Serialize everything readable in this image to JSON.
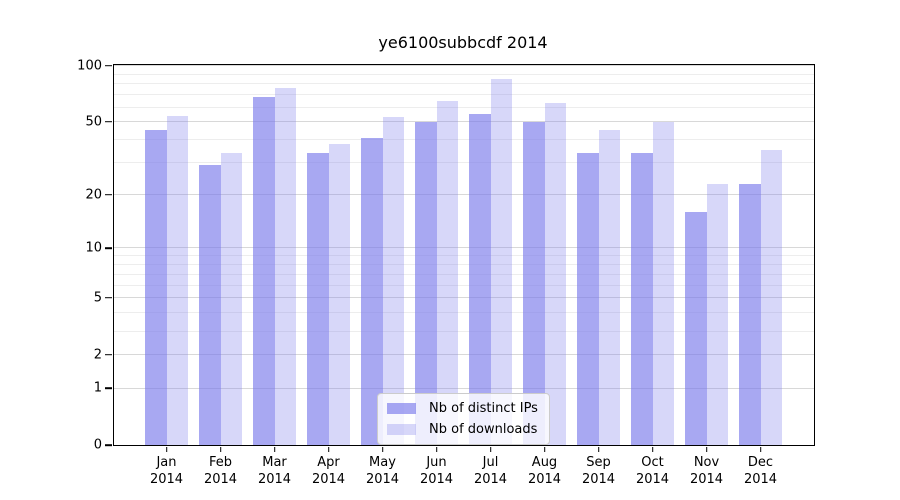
{
  "title": "ye6100subbcdf 2014",
  "chart_data": {
    "type": "bar",
    "title": "ye6100subbcdf 2014",
    "categories": [
      "Jan 2014",
      "Feb 2014",
      "Mar 2014",
      "Apr 2014",
      "May 2014",
      "Jun 2014",
      "Jul 2014",
      "Aug 2014",
      "Sep 2014",
      "Oct 2014",
      "Nov 2014",
      "Dec 2014"
    ],
    "series": [
      {
        "name": "Nb of distinct IPs",
        "color": "#7a7aeb",
        "alpha": 0.65,
        "color_on_white": "#ababf3",
        "values": [
          45,
          29,
          68,
          34,
          41,
          50,
          55,
          50,
          34,
          34,
          16,
          23
        ]
      },
      {
        "name": "Nb of downloads",
        "color": "#7a7aeb",
        "alpha": 0.3,
        "color_on_white": "#d9d9f7",
        "values": [
          54,
          34,
          76,
          38,
          53,
          65,
          85,
          63,
          45,
          50,
          23,
          35
        ]
      }
    ],
    "yscale": "log1p",
    "yticks": [
      0,
      1,
      2,
      5,
      10,
      20,
      50,
      100
    ],
    "minor_grid_values": [
      1,
      2,
      3,
      4,
      5,
      6,
      7,
      8,
      9,
      10,
      20,
      30,
      40,
      50,
      60,
      70,
      80,
      90,
      100
    ],
    "ylim": [
      0,
      100
    ],
    "xlabel": "",
    "ylabel": "",
    "grid": "horizontal",
    "legend_position": "lower-center"
  },
  "colors": {
    "grid_major": "#d8d8d8",
    "grid_minor": "#ededed",
    "axis": "#000000",
    "legend_border": "#cccccc"
  }
}
